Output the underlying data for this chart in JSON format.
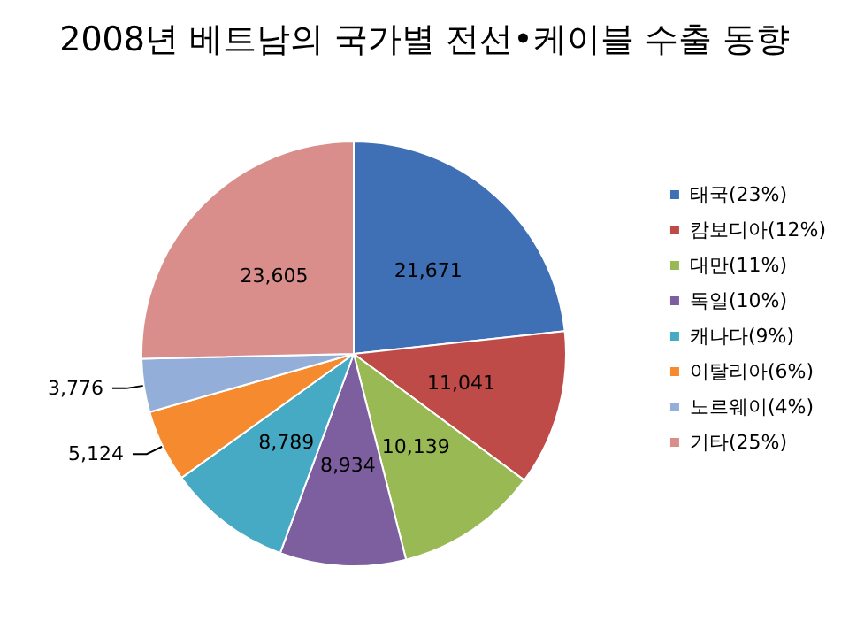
{
  "chart_data": {
    "type": "pie",
    "title": "2008년 베트남의 국가별 전선•케이블 수출 동향",
    "categories": [
      "태국(23%)",
      "캄보디아(12%)",
      "대만(11%)",
      "독일(10%)",
      "캐나다(9%)",
      "이탈리아(6%)",
      "노르웨이(4%)",
      "기타(25%)"
    ],
    "values": [
      21671,
      11041,
      10139,
      8934,
      8789,
      5124,
      3776,
      23605
    ],
    "colors": [
      "#3f6fb5",
      "#be4b48",
      "#98b954",
      "#7d5fa0",
      "#46aac4",
      "#f58b2e",
      "#93aed8",
      "#d98e8c"
    ],
    "value_labels": [
      "21,671",
      "11,041",
      "10,139",
      "8,934",
      "8,789",
      "5,124",
      "3,776",
      "23,605"
    ],
    "legend": "right"
  }
}
